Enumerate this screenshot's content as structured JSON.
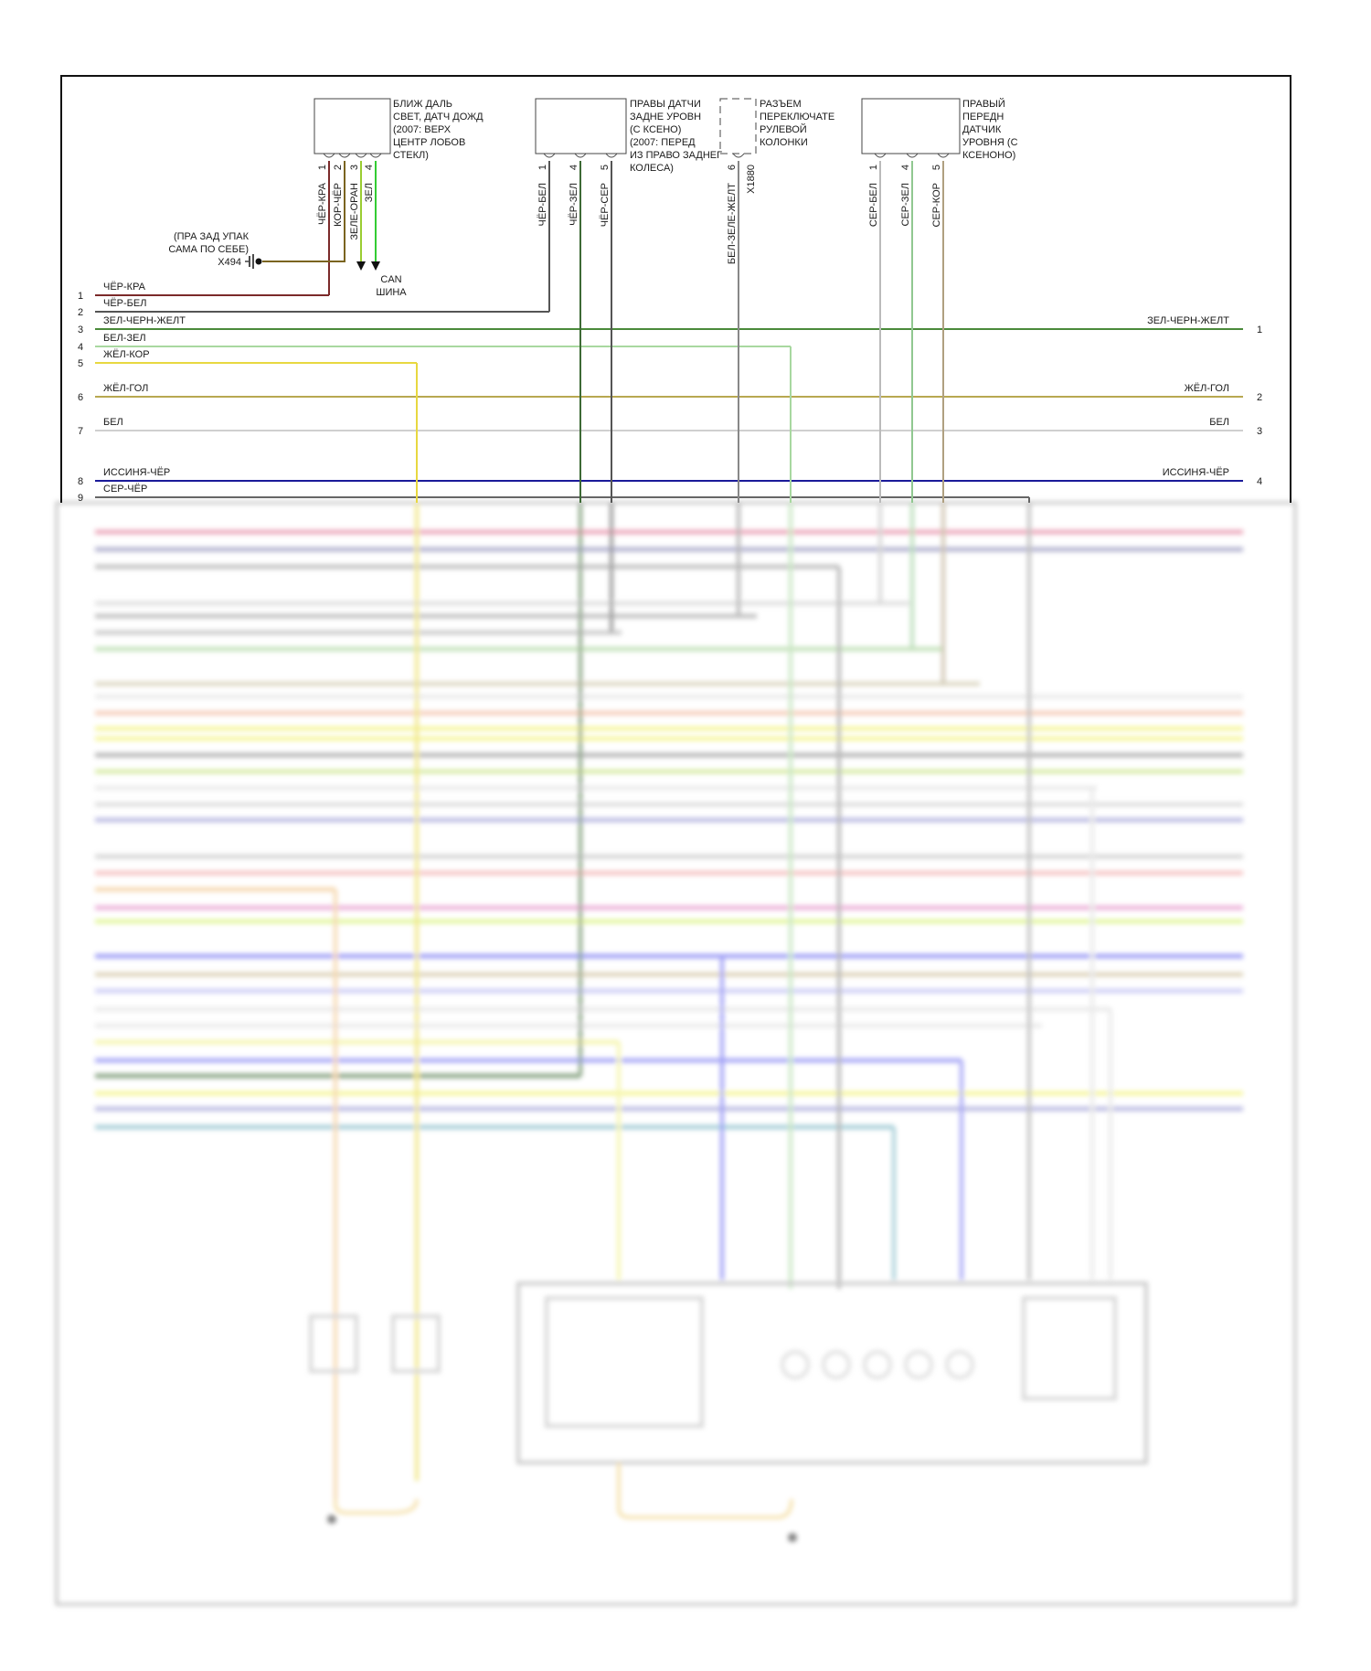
{
  "connectors": [
    {
      "id": "rain-light-sensor",
      "lines": [
        "БЛИЖ ДАЛЬ",
        "СВЕТ, ДАТЧ ДОЖД",
        "(2007: ВЕРХ",
        "ЦЕНТР ЛОБОВ",
        "СТЕКЛ)"
      ],
      "pins": [
        {
          "num": "1",
          "wire": "ЧЁР-КРА"
        },
        {
          "num": "2",
          "wire": "КОР-ЧЁР"
        },
        {
          "num": "3",
          "wire": "ЗЕЛЕ-ОРАН"
        },
        {
          "num": "4",
          "wire": "ЗЕЛ"
        }
      ]
    },
    {
      "id": "right-rear-level-sensor",
      "lines": [
        "ПРАВЫ ДАТЧИ",
        "ЗАДНЕ УРОВН",
        "(С КСЕНО)",
        "(2007: ПЕРЕД",
        "ИЗ ПРАВО ЗАДНЕГ",
        "КОЛЕСА)"
      ],
      "pins": [
        {
          "num": "1",
          "wire": "ЧЁР-БЕЛ"
        },
        {
          "num": "4",
          "wire": "ЧЁР-ЗЕЛ"
        },
        {
          "num": "5",
          "wire": "ЧЁР-СЕР"
        }
      ]
    },
    {
      "id": "steering-column-switch-connector",
      "lines": [
        "РАЗЪЕМ",
        "ПЕРЕКЛЮЧАТЕ",
        "РУЛЕВОЙ",
        "КОЛОНКИ"
      ],
      "pins": [
        {
          "num": "6",
          "wire": "БЕЛ-ЗЕЛЕ-ЖЕЛТ"
        }
      ],
      "code": "X1880"
    },
    {
      "id": "right-front-level-sensor",
      "lines": [
        "ПРАВЫЙ",
        "ПЕРЕДН",
        "ДАТЧИК",
        "УРОВНЯ (С",
        "КСЕНОНО)"
      ],
      "pins": [
        {
          "num": "1",
          "wire": "СЕР-БЕЛ"
        },
        {
          "num": "4",
          "wire": "СЕР-ЗЕЛ"
        },
        {
          "num": "5",
          "wire": "СЕР-КОР"
        }
      ]
    }
  ],
  "ground": {
    "lines": [
      "(ПРА ЗАД УПАК",
      "САМА ПО СЕБЕ)"
    ],
    "code": "X494"
  },
  "can_bus": {
    "lines": [
      "CAN",
      "ШИНА"
    ]
  },
  "left_rows": [
    {
      "num": "1",
      "label": "ЧЁР-КРА",
      "color": "#7b2a2a"
    },
    {
      "num": "2",
      "label": "ЧЁР-БЕЛ",
      "color": "#555555"
    },
    {
      "num": "3",
      "label": "ЗЕЛ-ЧЕРН-ЖЕЛТ",
      "color": "#4a8a3a"
    },
    {
      "num": "4",
      "label": "БЕЛ-ЗЕЛ",
      "color": "#a8d8a0"
    },
    {
      "num": "5",
      "label": "ЖЁЛ-КОР",
      "color": "#e8d840"
    },
    {
      "num": "6",
      "label": "ЖЁЛ-ГОЛ",
      "color": "#b8a850"
    },
    {
      "num": "7",
      "label": "БЕЛ",
      "color": "#cfcfcf"
    },
    {
      "num": "8",
      "label": "ИССИНЯ-ЧЁР",
      "color": "#1a1a99"
    },
    {
      "num": "9",
      "label": "СЕР-ЧЁР",
      "color": "#666666"
    }
  ],
  "right_rows": [
    {
      "num": "1",
      "label": "ЗЕЛ-ЧЕРН-ЖЕЛТ"
    },
    {
      "num": "2",
      "label": "ЖЁЛ-ГОЛ"
    },
    {
      "num": "3",
      "label": "БЕЛ"
    },
    {
      "num": "4",
      "label": "ИССИНЯ-ЧЁР"
    }
  ],
  "wire_colors": {
    "ЧЁР-КРА": "#7b2a2a",
    "КОР-ЧЁР": "#7a6420",
    "ЗЕЛЕ-ОРАН": "#9acd32",
    "ЗЕЛ": "#33cc33",
    "ЧЁР-БЕЛ": "#555555",
    "ЧЁР-ЗЕЛ": "#3d6a35",
    "ЧЁР-СЕР": "#555555",
    "БЕЛ-ЗЕЛЕ-ЖЕЛТ": "#888888",
    "СЕР-БЕЛ": "#bbbbbb",
    "СЕР-ЗЕЛ": "#90c890",
    "СЕР-КОР": "#b0a080"
  },
  "lower_section_blurred": true
}
